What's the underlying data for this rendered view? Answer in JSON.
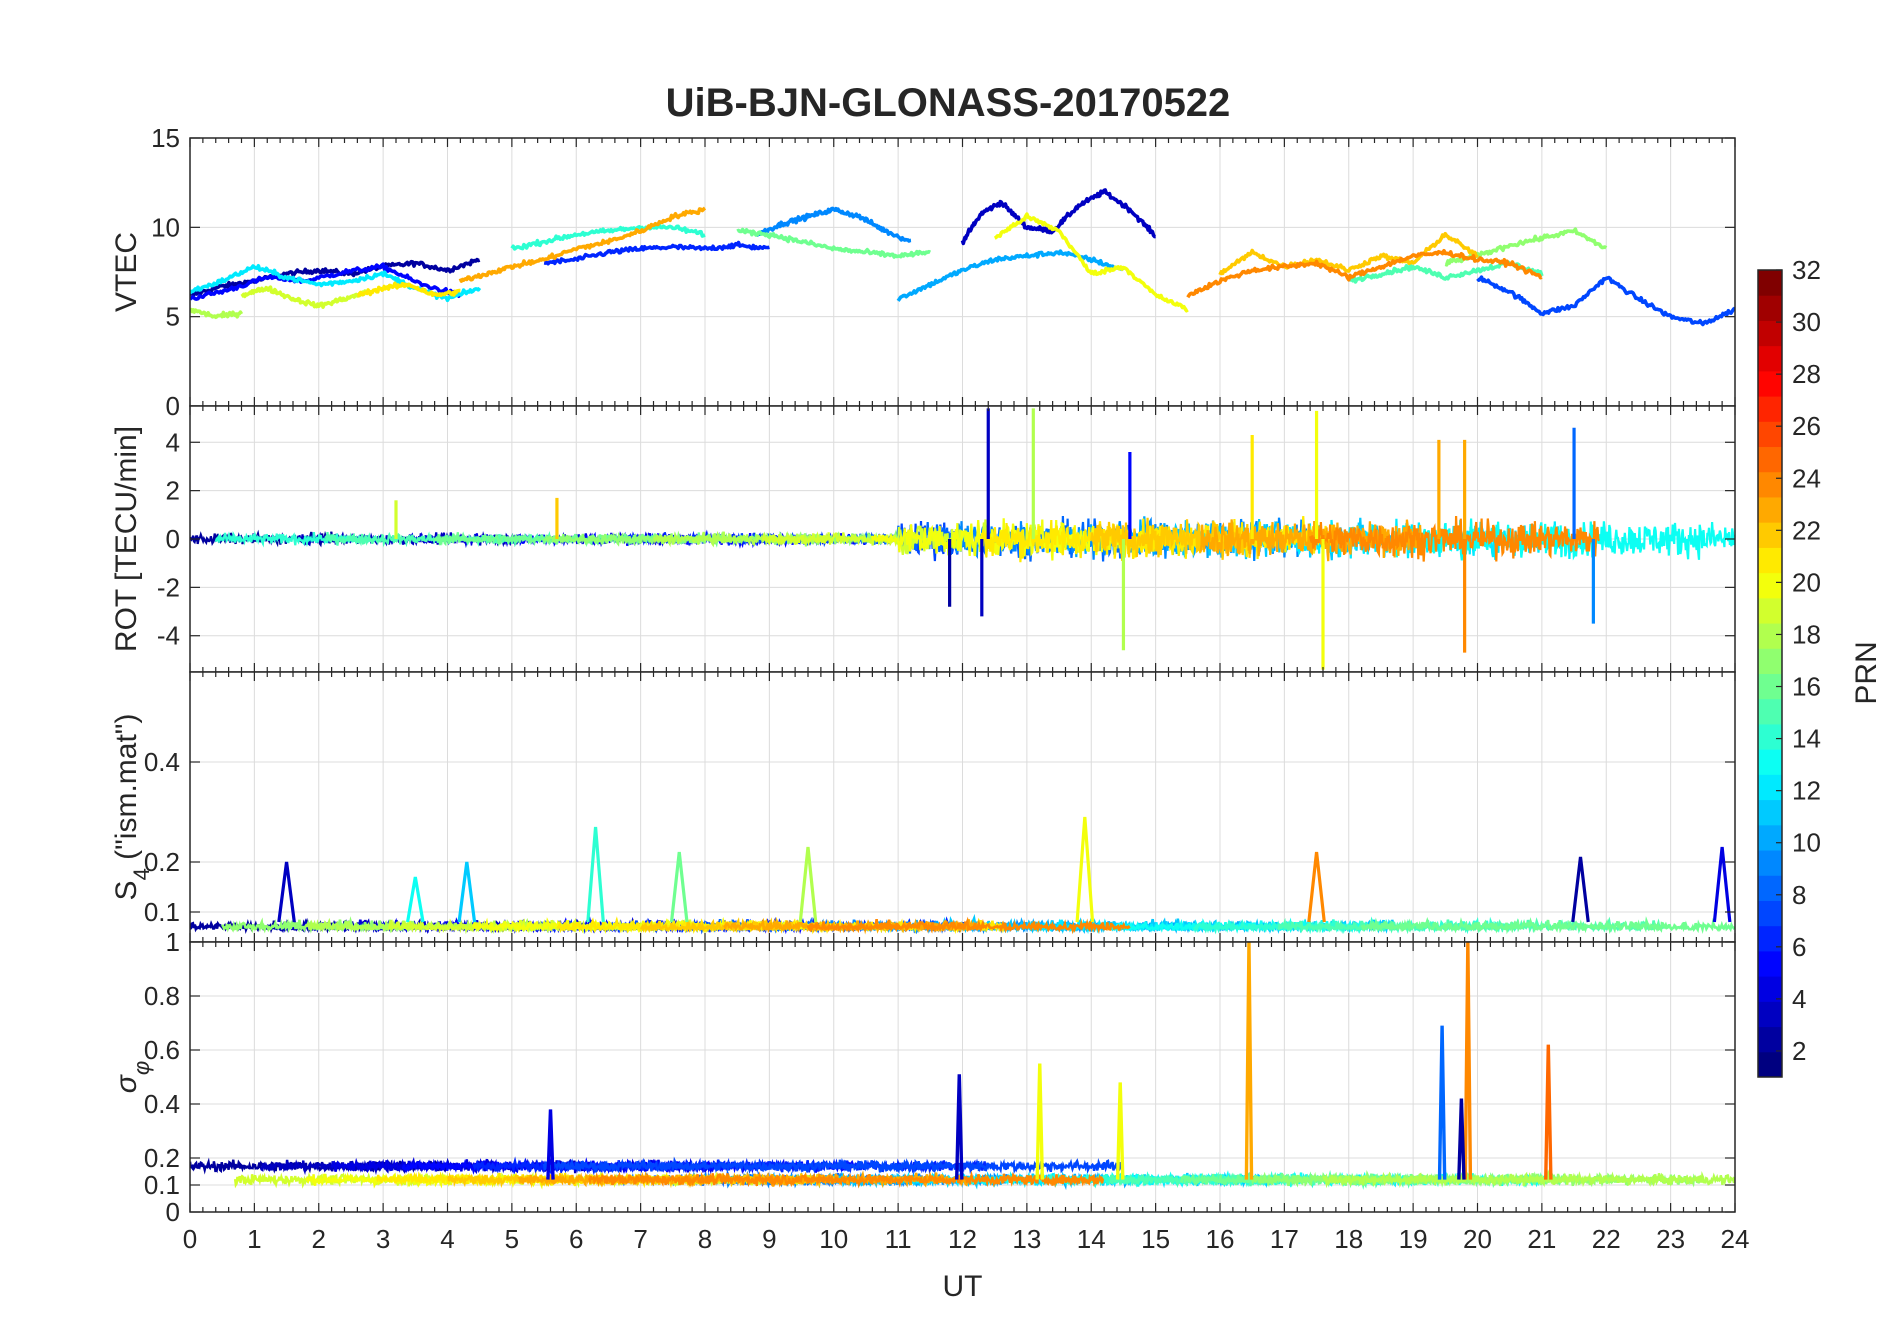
{
  "title": "UiB-BJN-GLONASS-20170522",
  "chart_data": [
    {
      "type": "line",
      "panel": "vtec",
      "ylabel": "VTEC",
      "ylim": [
        0,
        15
      ],
      "yticks": [
        0,
        5,
        10,
        15
      ],
      "xlim": [
        0,
        24
      ],
      "grid": true,
      "series": [
        {
          "prn": 2,
          "x": [
            0,
            0.5,
            1,
            1.5,
            2,
            2.5,
            3,
            3.5,
            4,
            4.5
          ],
          "y": [
            6.2,
            6.7,
            7.0,
            7.4,
            7.6,
            7.4,
            7.8,
            8.0,
            7.6,
            8.2
          ]
        },
        {
          "prn": 3,
          "x": [
            12,
            12.3,
            12.6,
            13,
            13.4,
            13.8,
            14.2,
            14.6,
            15
          ],
          "y": [
            9.2,
            10.8,
            11.4,
            10.0,
            9.8,
            11.2,
            12.0,
            11.0,
            9.5
          ]
        },
        {
          "prn": 5,
          "x": [
            0,
            0.6,
            1.2,
            1.8,
            2.4,
            3,
            3.6,
            4.2
          ],
          "y": [
            6.0,
            6.5,
            7.2,
            7.0,
            7.5,
            7.8,
            6.8,
            6.2
          ]
        },
        {
          "prn": 6,
          "x": [
            5.5,
            6,
            6.5,
            7,
            7.5,
            8,
            8.5,
            9
          ],
          "y": [
            8.0,
            8.2,
            8.6,
            8.8,
            8.9,
            8.8,
            9.0,
            8.8
          ]
        },
        {
          "prn": 7,
          "x": [
            20,
            20.5,
            21,
            21.5,
            22,
            22.5,
            23,
            23.5,
            24
          ],
          "y": [
            7.2,
            6.4,
            5.2,
            5.6,
            7.2,
            6.0,
            5.0,
            4.6,
            5.4
          ]
        },
        {
          "prn": 9,
          "x": [
            8.8,
            9.2,
            9.6,
            10,
            10.4,
            10.8,
            11.2
          ],
          "y": [
            9.6,
            10.2,
            10.6,
            11.0,
            10.6,
            9.8,
            9.2
          ]
        },
        {
          "prn": 10,
          "x": [
            11,
            11.5,
            12,
            12.5,
            13,
            13.5,
            14,
            14.5
          ],
          "y": [
            6.0,
            6.8,
            7.6,
            8.2,
            8.4,
            8.6,
            8.2,
            7.6
          ]
        },
        {
          "prn": 12,
          "x": [
            0,
            0.5,
            1,
            1.5,
            2,
            2.5,
            3,
            3.5,
            4,
            4.5
          ],
          "y": [
            6.4,
            7.0,
            7.8,
            7.2,
            6.8,
            7.0,
            7.4,
            6.6,
            6.0,
            6.6
          ]
        },
        {
          "prn": 14,
          "x": [
            5,
            5.5,
            6,
            6.5,
            7,
            7.5,
            8
          ],
          "y": [
            8.8,
            9.2,
            9.6,
            9.8,
            10.0,
            10.0,
            9.6
          ]
        },
        {
          "prn": 15,
          "x": [
            18,
            18.5,
            19,
            19.5,
            20,
            20.5,
            21
          ],
          "y": [
            7.0,
            7.4,
            7.8,
            7.2,
            7.6,
            8.0,
            7.4
          ]
        },
        {
          "prn": 16,
          "x": [
            8.5,
            9,
            9.5,
            10,
            10.5,
            11,
            11.5
          ],
          "y": [
            9.8,
            9.6,
            9.2,
            8.8,
            8.6,
            8.4,
            8.6
          ]
        },
        {
          "prn": 17,
          "x": [
            19.5,
            20,
            20.5,
            21,
            21.5,
            22
          ],
          "y": [
            8.0,
            8.4,
            9.0,
            9.4,
            9.8,
            8.8
          ]
        },
        {
          "prn": 18,
          "x": [
            0,
            0.4,
            0.8
          ],
          "y": [
            5.4,
            5.0,
            5.2
          ]
        },
        {
          "prn": 19,
          "x": [
            0.8,
            1.2,
            1.6,
            2,
            2.4,
            2.8
          ],
          "y": [
            6.2,
            6.6,
            6.0,
            5.6,
            6.0,
            6.4
          ]
        },
        {
          "prn": 20,
          "x": [
            12.5,
            13,
            13.5,
            14,
            14.5,
            15,
            15.5
          ],
          "y": [
            9.4,
            10.6,
            9.8,
            7.4,
            7.8,
            6.2,
            5.4
          ]
        },
        {
          "prn": 21,
          "x": [
            2.6,
            3,
            3.4,
            3.8,
            4.2
          ],
          "y": [
            6.2,
            6.6,
            6.8,
            6.2,
            6.4
          ]
        },
        {
          "prn": 22,
          "x": [
            16,
            16.5,
            17,
            17.5,
            18,
            18.5,
            19,
            19.5,
            20
          ],
          "y": [
            7.4,
            8.6,
            7.8,
            8.2,
            7.6,
            8.4,
            8.0,
            9.6,
            8.4
          ]
        },
        {
          "prn": 23,
          "x": [
            4.2,
            4.6,
            5,
            5.5,
            6,
            6.5,
            7,
            7.5,
            8
          ],
          "y": [
            7.0,
            7.4,
            7.8,
            8.2,
            8.8,
            9.2,
            9.8,
            10.6,
            11.0
          ]
        },
        {
          "prn": 24,
          "x": [
            15.5,
            16,
            16.5,
            17,
            17.5,
            18,
            18.5,
            19,
            19.5,
            20,
            20.5,
            21
          ],
          "y": [
            6.2,
            7.0,
            7.6,
            7.8,
            8.0,
            7.2,
            7.8,
            8.4,
            8.6,
            8.2,
            8.0,
            7.2
          ]
        }
      ]
    },
    {
      "type": "line",
      "panel": "rot",
      "ylabel": "ROT [TECU/min]",
      "ylim": [
        -5.5,
        5.5
      ],
      "yticks": [
        -4,
        -2,
        0,
        2,
        4
      ],
      "xlim": [
        0,
        24
      ],
      "grid": true,
      "spikes": [
        {
          "prn": 3,
          "x": 12.4,
          "y": 5.4
        },
        {
          "prn": 3,
          "x": 12.3,
          "y": -3.2
        },
        {
          "prn": 2,
          "x": 11.8,
          "y": -2.8
        },
        {
          "prn": 5,
          "x": 14.6,
          "y": 3.6
        },
        {
          "prn": 18,
          "x": 13.1,
          "y": 5.4
        },
        {
          "prn": 18,
          "x": 14.5,
          "y": -4.6
        },
        {
          "prn": 20,
          "x": 17.5,
          "y": 5.3
        },
        {
          "prn": 20,
          "x": 17.6,
          "y": -5.4
        },
        {
          "prn": 21,
          "x": 16.5,
          "y": 4.3
        },
        {
          "prn": 23,
          "x": 19.4,
          "y": 4.1
        },
        {
          "prn": 23,
          "x": 19.8,
          "y": 4.1
        },
        {
          "prn": 24,
          "x": 19.8,
          "y": -4.7
        },
        {
          "prn": 8,
          "x": 21.5,
          "y": 4.6
        },
        {
          "prn": 9,
          "x": 21.8,
          "y": -3.5
        },
        {
          "prn": 19,
          "x": 3.2,
          "y": 1.6
        },
        {
          "prn": 22,
          "x": 5.7,
          "y": 1.7
        }
      ]
    },
    {
      "type": "line",
      "panel": "s4",
      "ylabel": "S4 (\"ism.mat\")",
      "ylim": [
        0.04,
        0.58
      ],
      "yticks": [
        0.1,
        0.2,
        0.4
      ],
      "xlim": [
        0,
        24
      ],
      "grid": true,
      "peaks": [
        {
          "prn": 3,
          "x": 1.5,
          "y": 0.2
        },
        {
          "prn": 13,
          "x": 3.5,
          "y": 0.17
        },
        {
          "prn": 11,
          "x": 4.3,
          "y": 0.2
        },
        {
          "prn": 14,
          "x": 6.3,
          "y": 0.27
        },
        {
          "prn": 16,
          "x": 7.6,
          "y": 0.22
        },
        {
          "prn": 18,
          "x": 9.6,
          "y": 0.23
        },
        {
          "prn": 20,
          "x": 13.9,
          "y": 0.29
        },
        {
          "prn": 24,
          "x": 17.5,
          "y": 0.22
        },
        {
          "prn": 2,
          "x": 21.6,
          "y": 0.21
        },
        {
          "prn": 4,
          "x": 23.8,
          "y": 0.23
        }
      ]
    },
    {
      "type": "line",
      "panel": "sigma_phi",
      "ylabel": "σφ",
      "ylim": [
        0,
        1
      ],
      "yticks": [
        0,
        0.1,
        0.2,
        0.4,
        0.6,
        0.8,
        1
      ],
      "xlim": [
        0,
        24
      ],
      "grid": true,
      "spikes": [
        {
          "prn": 23,
          "x": 16.45,
          "y": 1.0
        },
        {
          "prn": 24,
          "x": 19.85,
          "y": 1.0
        },
        {
          "prn": 8,
          "x": 19.45,
          "y": 0.69
        },
        {
          "prn": 25,
          "x": 21.1,
          "y": 0.62
        },
        {
          "prn": 20,
          "x": 13.2,
          "y": 0.55
        },
        {
          "prn": 3,
          "x": 11.95,
          "y": 0.51
        },
        {
          "prn": 20,
          "x": 14.45,
          "y": 0.48
        },
        {
          "prn": 4,
          "x": 5.6,
          "y": 0.38
        },
        {
          "prn": 2,
          "x": 19.75,
          "y": 0.42
        }
      ]
    }
  ],
  "x_axis": {
    "label": "UT",
    "ticks": [
      "0",
      "1",
      "2",
      "3",
      "4",
      "5",
      "6",
      "7",
      "8",
      "9",
      "10",
      "11",
      "12",
      "13",
      "14",
      "15",
      "16",
      "17",
      "18",
      "19",
      "20",
      "21",
      "22",
      "23",
      "24"
    ]
  },
  "colorbar": {
    "label": "PRN",
    "min": 1,
    "max": 32,
    "ticks": [
      "2",
      "4",
      "6",
      "8",
      "10",
      "12",
      "14",
      "16",
      "18",
      "20",
      "22",
      "24",
      "26",
      "28",
      "30",
      "32"
    ],
    "colormap": "jet",
    "levels": 32
  },
  "s4_label": {
    "base": "S",
    "sub": "4",
    "rest": " (\"ism.mat\")"
  },
  "sigma_label": {
    "base": "σ",
    "sub": "φ"
  }
}
